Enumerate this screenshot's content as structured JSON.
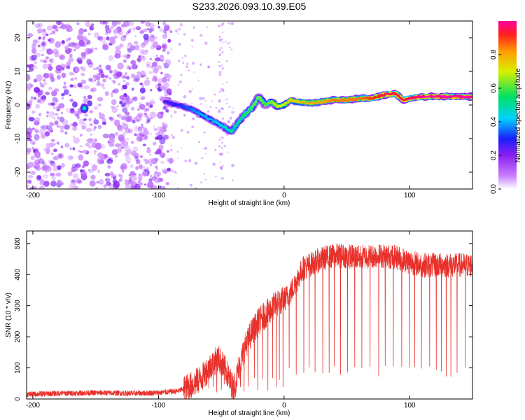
{
  "title": "S233.2026.093.10.39.E05",
  "chart_data": [
    {
      "type": "heatmap",
      "title": "S233.2026.093.10.39.E05",
      "xlabel": "Height of straight line (km)",
      "ylabel": "Frequency (Hz)",
      "xlim": [
        -205,
        150
      ],
      "ylim": [
        -25,
        25
      ],
      "x_ticks": [
        -200,
        -100,
        0,
        100
      ],
      "x_tick_labels": [
        "-200",
        "-100",
        "0",
        "100"
      ],
      "y_ticks": [
        -20,
        -10,
        0,
        10,
        20
      ],
      "y_tick_labels": [
        "-20",
        "-10",
        "0",
        "10",
        "20"
      ],
      "colorbar": {
        "label": "Normalized spectral amplitude",
        "range": [
          0,
          1
        ],
        "ticks": [
          0.0,
          0.2,
          0.4,
          0.6,
          0.8
        ],
        "tick_labels": [
          "0.0",
          "0.2",
          "0.4",
          "0.6",
          "0.8"
        ]
      },
      "ridge": {
        "x": [
          -95,
          -85,
          -75,
          -65,
          -55,
          -48,
          -42,
          -38,
          -32,
          -26,
          -20,
          -15,
          -10,
          -5,
          0,
          5,
          10,
          20,
          30,
          40,
          50,
          60,
          70,
          80,
          88,
          95,
          100,
          110,
          120,
          130,
          140,
          150
        ],
        "freq": [
          1,
          0,
          -1,
          -3,
          -5,
          -6.5,
          -8,
          -6,
          -3,
          -1,
          2.5,
          0,
          1,
          -0.5,
          0,
          1.5,
          1,
          0.5,
          1,
          1.5,
          1.5,
          2,
          2,
          3,
          3.5,
          1.5,
          2,
          2.5,
          2.5,
          2.5,
          2.5,
          2.5
        ],
        "amplitude": [
          0.25,
          0.3,
          0.35,
          0.4,
          0.4,
          0.45,
          0.5,
          0.5,
          0.55,
          0.6,
          0.65,
          0.6,
          0.65,
          0.7,
          0.7,
          0.75,
          0.75,
          0.8,
          0.8,
          0.85,
          0.85,
          0.85,
          0.9,
          0.95,
          0.95,
          0.95,
          0.95,
          1.0,
          1.0,
          1.0,
          1.0,
          1.0
        ]
      }
    },
    {
      "type": "line",
      "xlabel": "Height of straight line (km)",
      "ylabel": "SNR (10 * v/v)",
      "xlim": [
        -205,
        150
      ],
      "ylim": [
        0,
        540
      ],
      "x_ticks": [
        -200,
        -100,
        0,
        100
      ],
      "x_tick_labels": [
        "-200",
        "-100",
        "0",
        "100"
      ],
      "y_ticks": [
        0,
        100,
        200,
        300,
        400,
        500
      ],
      "y_tick_labels": [
        "0",
        "100",
        "200",
        "300",
        "400",
        "500"
      ],
      "color": "#e8312b",
      "envelope": {
        "x": [
          -205,
          -180,
          -150,
          -120,
          -100,
          -85,
          -75,
          -65,
          -58,
          -52,
          -45,
          -40,
          -36,
          -30,
          -25,
          -20,
          -15,
          -10,
          -5,
          0,
          5,
          10,
          15,
          20,
          30,
          40,
          50,
          60,
          70,
          80,
          90,
          100,
          110,
          120,
          130,
          140,
          150
        ],
        "y": [
          15,
          18,
          20,
          18,
          20,
          25,
          40,
          70,
          110,
          130,
          80,
          30,
          100,
          180,
          220,
          250,
          270,
          290,
          310,
          320,
          340,
          380,
          420,
          430,
          450,
          460,
          460,
          455,
          460,
          460,
          455,
          440,
          430,
          430,
          430,
          430,
          430
        ]
      }
    }
  ],
  "colors": {
    "spectrum_low": "#9a2bf0",
    "spectrum_mid": "#00c8ff",
    "spectrum_high": "#ff2030",
    "snr_line": "#e8312b"
  }
}
